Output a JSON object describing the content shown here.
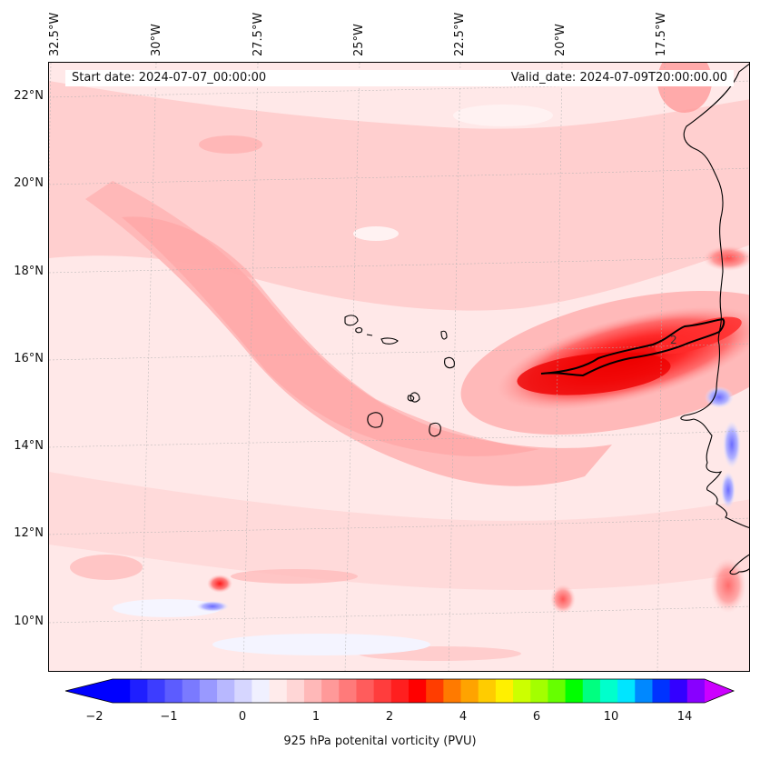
{
  "map": {
    "title_left": "Start date: 2024-07-07_00:00:00",
    "title_right": "Valid_date: 2024-07-09T20:00:00.00",
    "projection": "lambert-conformal",
    "extent": {
      "lon_min": -33.0,
      "lon_max": -15.6,
      "lat_min": 8.9,
      "lat_max": 22.8
    },
    "longitude_labels": [
      "32.5°W",
      "30°W",
      "27.5°W",
      "25°W",
      "22.5°W",
      "20°W",
      "17.5°W"
    ],
    "latitude_labels": [
      "22°N",
      "20°N",
      "18°N",
      "16°N",
      "14°N",
      "12°N",
      "10°N"
    ],
    "contour_label": "2",
    "gridlines": true,
    "features": [
      "West African coastline",
      "Cabo Verde islands",
      "PV streamer near 16°N"
    ]
  },
  "colorbar": {
    "label": "925 hPa potenital vorticity (PVU)",
    "tick_labels": [
      "−2",
      "−1",
      "0",
      "1",
      "2",
      "4",
      "6",
      "10",
      "14"
    ],
    "colors": [
      "#0000ff",
      "#1f1fff",
      "#3d3dff",
      "#5c5cff",
      "#7a7aff",
      "#9999ff",
      "#b8b8ff",
      "#d6d6ff",
      "#f0f0ff",
      "#ffebeb",
      "#ffd6d6",
      "#ffb8b8",
      "#ff9999",
      "#ff7a7a",
      "#ff5c5c",
      "#ff3d3d",
      "#ff1f1f",
      "#ff0000",
      "#ff3d00",
      "#ff7a00",
      "#ffa300",
      "#ffcc00",
      "#fff000",
      "#ccff00",
      "#a3ff00",
      "#66ff00",
      "#00ff00",
      "#00ff80",
      "#00ffcc",
      "#00e5ff",
      "#0088ff",
      "#0033ff",
      "#3300ff",
      "#8800ff"
    ],
    "extend": "both",
    "over_color": "#cc00ff",
    "under_color": "#0000ff"
  }
}
